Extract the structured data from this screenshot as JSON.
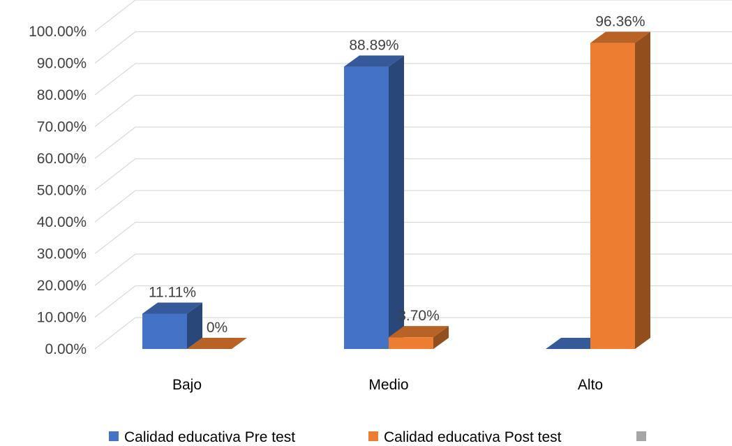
{
  "chart_data": {
    "type": "bar",
    "style": "3d-clustered-column",
    "categories": [
      "Bajo",
      "Medio",
      "Alto"
    ],
    "series": [
      {
        "name": "Calidad educativa Pre test",
        "color": "#4472c4",
        "values": [
          0.1111,
          0.8889,
          0.0
        ],
        "labels": [
          "11.11%",
          "88.89%",
          ""
        ]
      },
      {
        "name": "Calidad educativa Post test",
        "color": "#ed7d31",
        "values": [
          0.0,
          0.037,
          0.9636
        ],
        "labels": [
          "0%",
          "3.70%",
          "96.36%"
        ]
      },
      {
        "name": "",
        "color": "#a5a5a5",
        "values": [
          0,
          0,
          0
        ],
        "labels": [
          "",
          "",
          ""
        ]
      }
    ],
    "yticks": [
      "0.00%",
      "10.00%",
      "20.00%",
      "30.00%",
      "40.00%",
      "50.00%",
      "60.00%",
      "70.00%",
      "80.00%",
      "90.00%",
      "100.00%"
    ],
    "ylim": [
      0,
      1.0
    ],
    "grid": true,
    "legend": "bottom",
    "title": "",
    "xlabel": "",
    "ylabel": ""
  }
}
